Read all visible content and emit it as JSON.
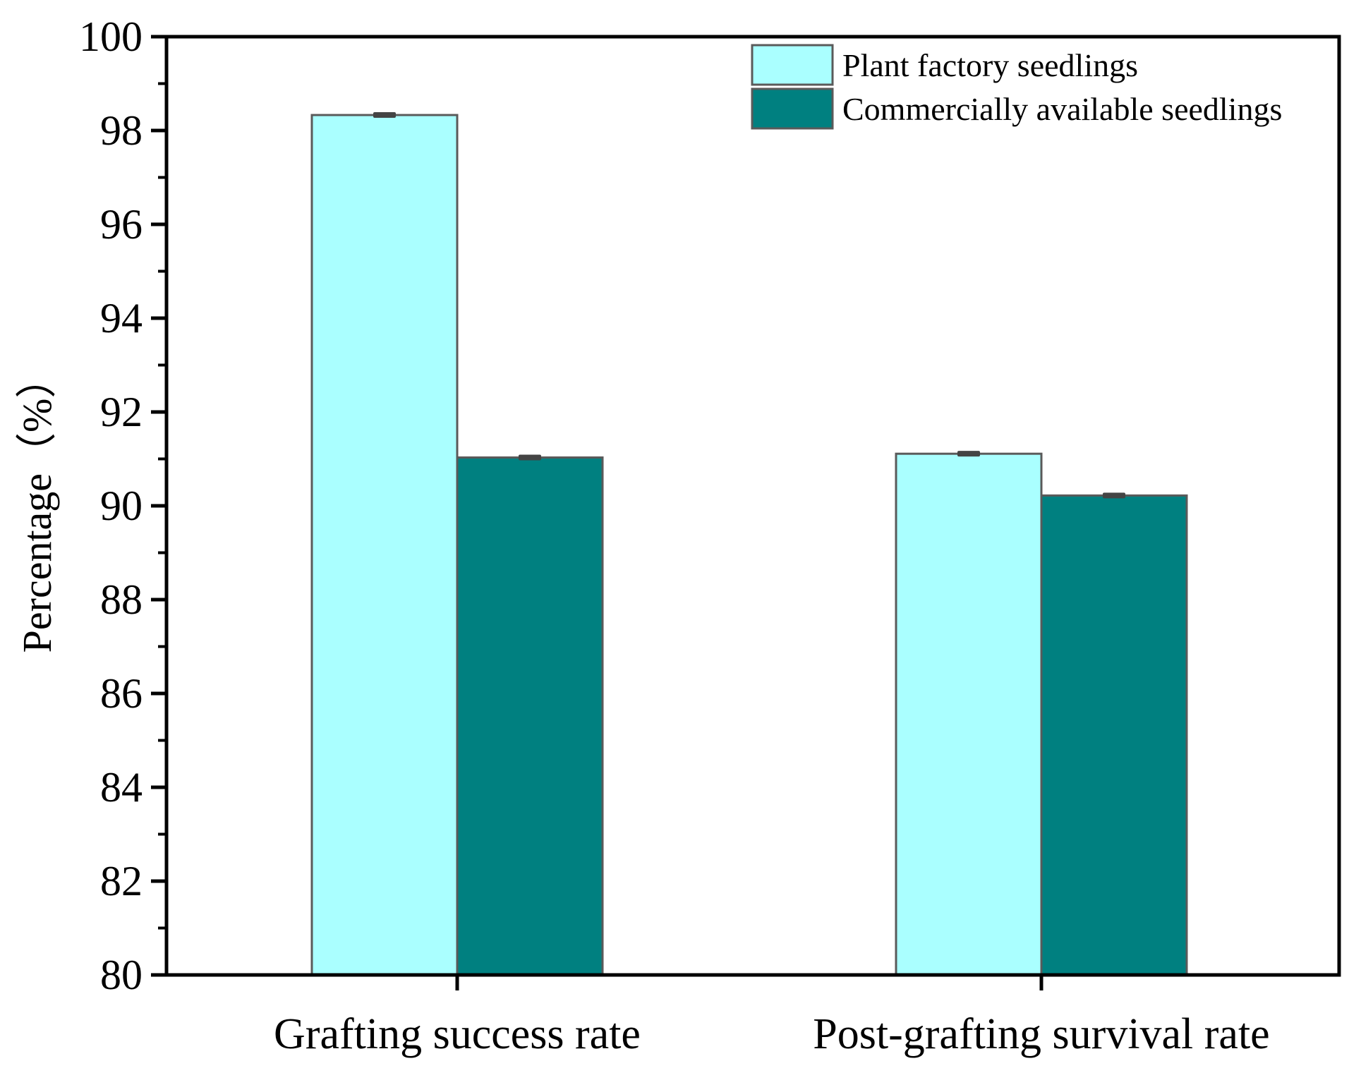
{
  "chart_data": {
    "type": "bar",
    "title": "",
    "xlabel": "",
    "ylabel": "Percentage（%）",
    "ylim": [
      80,
      100
    ],
    "yticks": [
      80,
      82,
      84,
      86,
      88,
      90,
      92,
      94,
      96,
      98,
      100
    ],
    "categories": [
      "Grafting success rate",
      "Post-grafting survival rate"
    ],
    "series": [
      {
        "name": "Plant factory seedlings",
        "color": "#aaffff",
        "values": [
          98.33,
          91.11
        ],
        "errors": [
          0.05,
          0.05
        ]
      },
      {
        "name": "Commercially available seedlings",
        "color": "#008080",
        "values": [
          91.03,
          90.22
        ],
        "errors": [
          0.05,
          0.05
        ]
      }
    ],
    "legend": "top-right",
    "grid": false
  }
}
